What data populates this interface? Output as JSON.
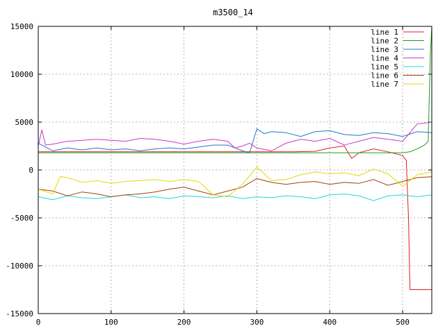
{
  "chart_data": {
    "type": "line",
    "title": "m3500_14",
    "xlabel": "",
    "ylabel": "",
    "xlim": [
      0,
      540
    ],
    "ylim": [
      -15000,
      15000
    ],
    "xticks": [
      0,
      100,
      200,
      300,
      400,
      500
    ],
    "yticks": [
      -15000,
      -10000,
      -5000,
      0,
      5000,
      10000,
      15000
    ],
    "xtick_labels": [
      "0",
      "100",
      "200",
      "300",
      "400",
      "500"
    ],
    "ytick_labels": [
      "-15000",
      "-10000",
      "-5000",
      "0",
      "5000",
      "10000",
      "15000"
    ],
    "grid": true,
    "legend_position": "top-right",
    "series": [
      {
        "name": "line 1",
        "color": "#e41a1c",
        "x": [
          0,
          100,
          200,
          300,
          350,
          380,
          400,
          420,
          430,
          440,
          460,
          480,
          500,
          505,
          508,
          510,
          520,
          540
        ],
        "y": [
          1900,
          1900,
          1900,
          1900,
          1900,
          1950,
          2300,
          2500,
          1200,
          1800,
          2200,
          1900,
          1500,
          1000,
          -5000,
          -12500,
          -12500,
          -12500
        ]
      },
      {
        "name": "line 2",
        "color": "#1a9d1a",
        "x": [
          0,
          100,
          200,
          300,
          400,
          500,
          510,
          520,
          530,
          535,
          538,
          540
        ],
        "y": [
          1800,
          1800,
          1800,
          1800,
          1800,
          1800,
          1900,
          2200,
          2600,
          3000,
          12000,
          15000
        ]
      },
      {
        "name": "line 3",
        "color": "#1f78c8",
        "x": [
          0,
          10,
          20,
          40,
          60,
          80,
          100,
          120,
          140,
          160,
          180,
          200,
          220,
          240,
          260,
          280,
          290,
          300,
          310,
          320,
          340,
          360,
          380,
          400,
          420,
          440,
          460,
          480,
          500,
          520,
          540
        ],
        "y": [
          2800,
          2400,
          2000,
          2300,
          2100,
          2300,
          2100,
          2200,
          2000,
          2200,
          2300,
          2200,
          2400,
          2600,
          2600,
          2000,
          1800,
          4300,
          3800,
          4000,
          3900,
          3500,
          4000,
          4100,
          3700,
          3600,
          3900,
          3800,
          3500,
          4000,
          3900
        ]
      },
      {
        "name": "line 4",
        "color": "#cc33cc",
        "x": [
          0,
          5,
          10,
          20,
          40,
          60,
          80,
          100,
          120,
          140,
          160,
          180,
          200,
          220,
          240,
          260,
          270,
          280,
          290,
          300,
          320,
          340,
          360,
          380,
          400,
          420,
          440,
          460,
          480,
          500,
          520,
          540
        ],
        "y": [
          2500,
          4200,
          2600,
          2700,
          3000,
          3100,
          3200,
          3100,
          3000,
          3300,
          3200,
          3000,
          2700,
          3000,
          3200,
          3000,
          2300,
          2500,
          2800,
          2300,
          2000,
          2800,
          3200,
          3000,
          3300,
          2600,
          3000,
          3400,
          3200,
          3000,
          4800,
          5000
        ]
      },
      {
        "name": "line 5",
        "color": "#1fd6d6",
        "x": [
          0,
          20,
          40,
          60,
          80,
          100,
          120,
          140,
          160,
          180,
          200,
          220,
          240,
          260,
          280,
          300,
          320,
          340,
          360,
          380,
          400,
          420,
          440,
          460,
          480,
          500,
          520,
          540
        ],
        "y": [
          -2800,
          -3100,
          -2700,
          -2900,
          -3000,
          -2800,
          -2600,
          -2900,
          -2800,
          -3000,
          -2700,
          -2800,
          -2900,
          -2700,
          -3000,
          -2800,
          -2900,
          -2700,
          -2800,
          -3000,
          -2600,
          -2500,
          -2700,
          -3200,
          -2700,
          -2600,
          -2800,
          -2600
        ]
      },
      {
        "name": "line 6",
        "color": "#a0400a",
        "x": [
          0,
          20,
          40,
          60,
          80,
          100,
          120,
          140,
          160,
          180,
          200,
          220,
          240,
          260,
          280,
          300,
          320,
          340,
          360,
          380,
          400,
          420,
          440,
          460,
          480,
          500,
          520,
          540
        ],
        "y": [
          -2000,
          -2200,
          -2700,
          -2300,
          -2500,
          -2800,
          -2600,
          -2500,
          -2300,
          -2000,
          -1800,
          -2200,
          -2600,
          -2200,
          -1800,
          -900,
          -1300,
          -1500,
          -1300,
          -1200,
          -1500,
          -1300,
          -1400,
          -1000,
          -1600,
          -1200,
          -800,
          -700
        ]
      },
      {
        "name": "line 7",
        "color": "#e6d800",
        "x": [
          0,
          20,
          30,
          40,
          60,
          80,
          100,
          120,
          140,
          160,
          180,
          200,
          220,
          240,
          260,
          280,
          300,
          320,
          340,
          360,
          380,
          400,
          420,
          440,
          460,
          480,
          500,
          520,
          540
        ],
        "y": [
          -2000,
          -2500,
          -700,
          -800,
          -1300,
          -1100,
          -1400,
          -1200,
          -1100,
          -1000,
          -1200,
          -1000,
          -1200,
          -2600,
          -2800,
          -1500,
          300,
          -1100,
          -1000,
          -500,
          -200,
          -400,
          -300,
          -600,
          100,
          -400,
          -1700,
          -500,
          -200
        ]
      }
    ]
  }
}
